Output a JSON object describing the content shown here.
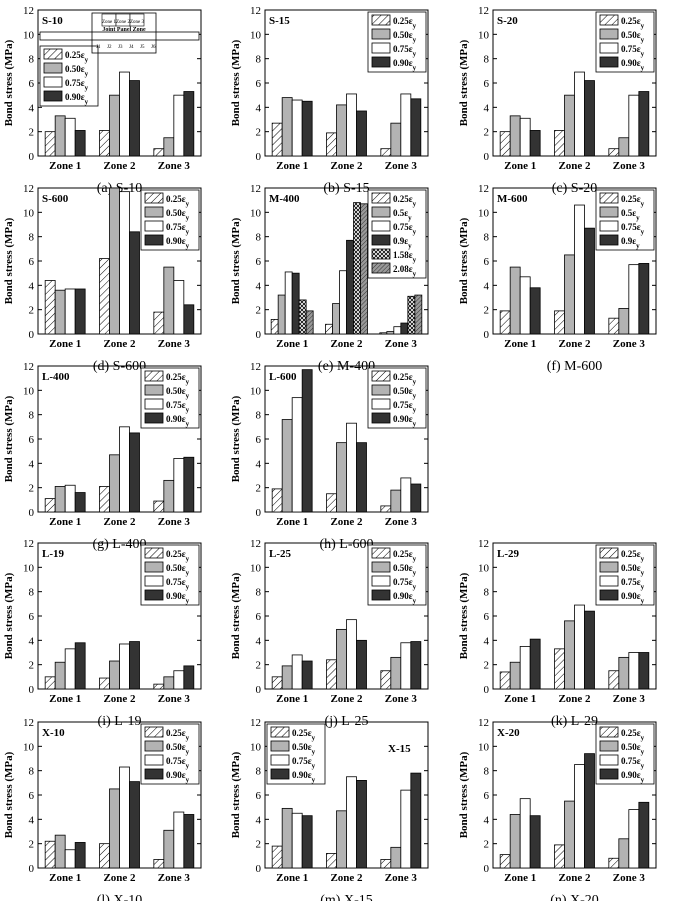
{
  "figure": {
    "bar_colors": [
      "#ffffff",
      "#b3b3b3",
      "#ffffff",
      "#333333",
      "#ffffff",
      "#999999"
    ],
    "bar_patterns": [
      "hatch",
      "solid",
      "solid",
      "solid",
      "cross",
      "dense-hatch"
    ],
    "inset": {
      "title": "Joint Panel Zone",
      "zone_labels": [
        "Zone 1",
        "Zone 2",
        "Zone 3"
      ],
      "gauge_labels": [
        "J1",
        "J2",
        "J3",
        "J4",
        "J5",
        "J6"
      ]
    }
  },
  "chart_data": [
    {
      "type": "bar",
      "title": "S-10",
      "caption": "(a) S-10",
      "ylabel": "Bond stress (MPa)",
      "ylim": [
        0,
        12
      ],
      "yticks": [
        0,
        2,
        4,
        6,
        8,
        10,
        12
      ],
      "categories": [
        "Zone 1",
        "Zone 2",
        "Zone 3"
      ],
      "legend_position": "left-middle",
      "series": [
        {
          "name": "0.25εy",
          "values": [
            2.0,
            2.1,
            0.6
          ]
        },
        {
          "name": "0.50εy",
          "values": [
            3.3,
            5.0,
            1.5
          ]
        },
        {
          "name": "0.75εy",
          "values": [
            3.1,
            6.9,
            5.0
          ]
        },
        {
          "name": "0.90εy",
          "values": [
            2.1,
            6.2,
            5.3
          ]
        }
      ]
    },
    {
      "type": "bar",
      "title": "S-15",
      "caption": "(b) S-15",
      "ylabel": "Bond stress (MPa)",
      "ylim": [
        0,
        12
      ],
      "yticks": [
        0,
        2,
        4,
        6,
        8,
        10,
        12
      ],
      "categories": [
        "Zone 1",
        "Zone 2",
        "Zone 3"
      ],
      "legend_position": "top-right",
      "series": [
        {
          "name": "0.25εy",
          "values": [
            2.7,
            1.9,
            0.6
          ]
        },
        {
          "name": "0.50εy",
          "values": [
            4.8,
            4.2,
            2.7
          ]
        },
        {
          "name": "0.75εy",
          "values": [
            4.6,
            5.1,
            5.1
          ]
        },
        {
          "name": "0.90εy",
          "values": [
            4.5,
            3.7,
            4.7
          ]
        }
      ]
    },
    {
      "type": "bar",
      "title": "S-20",
      "caption": "(c) S-20",
      "ylabel": "Bond stress (MPa)",
      "ylim": [
        0,
        12
      ],
      "yticks": [
        0,
        2,
        4,
        6,
        8,
        10,
        12
      ],
      "categories": [
        "Zone 1",
        "Zone 2",
        "Zone 3"
      ],
      "legend_position": "top-right",
      "series": [
        {
          "name": "0.25εy",
          "values": [
            2.0,
            2.1,
            0.6
          ]
        },
        {
          "name": "0.50εy",
          "values": [
            3.3,
            5.0,
            1.5
          ]
        },
        {
          "name": "0.75εy",
          "values": [
            3.1,
            6.9,
            5.0
          ]
        },
        {
          "name": "0.90εy",
          "values": [
            2.1,
            6.2,
            5.3
          ]
        }
      ]
    },
    {
      "type": "bar",
      "title": "S-600",
      "caption": "(d) S-600",
      "ylabel": "Bond stress (MPa)",
      "ylim": [
        0,
        12
      ],
      "yticks": [
        0,
        2,
        4,
        6,
        8,
        10,
        12
      ],
      "categories": [
        "Zone 1",
        "Zone 2",
        "Zone 3"
      ],
      "legend_position": "top-right",
      "series": [
        {
          "name": "0.25εy",
          "values": [
            4.4,
            6.2,
            1.8
          ]
        },
        {
          "name": "0.50εy",
          "values": [
            3.6,
            12.0,
            5.5
          ]
        },
        {
          "name": "0.75εy",
          "values": [
            3.7,
            11.7,
            4.4
          ]
        },
        {
          "name": "0.90εy",
          "values": [
            3.7,
            8.4,
            2.4
          ]
        }
      ]
    },
    {
      "type": "bar",
      "title": "M-400",
      "caption": "(e) M-400",
      "ylabel": "Bond stress (MPa)",
      "ylim": [
        0,
        12
      ],
      "yticks": [
        0,
        2,
        4,
        6,
        8,
        10,
        12
      ],
      "categories": [
        "Zone 1",
        "Zone 2",
        "Zone 3"
      ],
      "legend_position": "top-right",
      "series": [
        {
          "name": "0.25εy",
          "values": [
            1.2,
            0.8,
            0.1
          ]
        },
        {
          "name": "0.5εy",
          "values": [
            3.2,
            2.5,
            0.2
          ]
        },
        {
          "name": "0.75εy",
          "values": [
            5.1,
            5.2,
            0.6
          ]
        },
        {
          "name": "0.9εy",
          "values": [
            5.0,
            7.7,
            0.9
          ]
        },
        {
          "name": "1.58εy",
          "values": [
            2.8,
            10.8,
            3.1
          ]
        },
        {
          "name": "2.08εy",
          "values": [
            1.9,
            10.7,
            3.2
          ]
        }
      ]
    },
    {
      "type": "bar",
      "title": "M-600",
      "caption": "(f) M-600",
      "ylabel": "Bond stress (MPa)",
      "ylim": [
        0,
        12
      ],
      "yticks": [
        0,
        2,
        4,
        6,
        8,
        10,
        12
      ],
      "categories": [
        "Zone 1",
        "Zone 2",
        "Zone 3"
      ],
      "legend_position": "top-right",
      "series": [
        {
          "name": "0.25εy",
          "values": [
            1.9,
            1.9,
            1.3
          ]
        },
        {
          "name": "0.5εy",
          "values": [
            5.5,
            6.5,
            2.1
          ]
        },
        {
          "name": "0.75εy",
          "values": [
            4.7,
            10.6,
            5.7
          ]
        },
        {
          "name": "0.9εy",
          "values": [
            3.8,
            8.7,
            5.8
          ]
        }
      ]
    },
    {
      "type": "bar",
      "title": "L-400",
      "caption": "(g) L-400",
      "ylabel": "Bond stress (MPa)",
      "ylim": [
        0,
        12
      ],
      "yticks": [
        0,
        2,
        4,
        6,
        8,
        10,
        12
      ],
      "categories": [
        "Zone 1",
        "Zone 2",
        "Zone 3"
      ],
      "legend_position": "top-right",
      "series": [
        {
          "name": "0.25εy",
          "values": [
            1.1,
            2.1,
            0.9
          ]
        },
        {
          "name": "0.50εy",
          "values": [
            2.1,
            4.7,
            2.6
          ]
        },
        {
          "name": "0.75εy",
          "values": [
            2.2,
            7.0,
            4.4
          ]
        },
        {
          "name": "0.90εy",
          "values": [
            1.6,
            6.5,
            4.5
          ]
        }
      ]
    },
    {
      "type": "bar",
      "title": "L-600",
      "caption": "(h) L-600",
      "ylabel": "Bond stress (MPa)",
      "ylim": [
        0,
        12
      ],
      "yticks": [
        0,
        2,
        4,
        6,
        8,
        10,
        12
      ],
      "categories": [
        "Zone 1",
        "Zone 2",
        "Zone 3"
      ],
      "legend_position": "top-right",
      "series": [
        {
          "name": "0.25εy",
          "values": [
            1.9,
            1.5,
            0.5
          ]
        },
        {
          "name": "0.50εy",
          "values": [
            7.6,
            5.7,
            1.8
          ]
        },
        {
          "name": "0.75εy",
          "values": [
            9.4,
            7.3,
            2.8
          ]
        },
        {
          "name": "0.90εy",
          "values": [
            11.7,
            5.7,
            2.3
          ]
        }
      ]
    },
    {
      "type": "bar",
      "title": "L-19",
      "caption": "(i) L-19",
      "ylabel": "Bond stress (MPa)",
      "ylim": [
        0,
        12
      ],
      "yticks": [
        0,
        2,
        4,
        6,
        8,
        10,
        12
      ],
      "categories": [
        "Zone 1",
        "Zone 2",
        "Zone 3"
      ],
      "legend_position": "top-right",
      "series": [
        {
          "name": "0.25εy",
          "values": [
            1.0,
            0.9,
            0.4
          ]
        },
        {
          "name": "0.50εy",
          "values": [
            2.2,
            2.3,
            1.0
          ]
        },
        {
          "name": "0.75εy",
          "values": [
            3.3,
            3.7,
            1.5
          ]
        },
        {
          "name": "0.90εy",
          "values": [
            3.8,
            3.9,
            1.9
          ]
        }
      ]
    },
    {
      "type": "bar",
      "title": "L-25",
      "caption": "(j) L-25",
      "ylabel": "Bond stress (MPa)",
      "ylim": [
        0,
        12
      ],
      "yticks": [
        0,
        2,
        4,
        6,
        8,
        10,
        12
      ],
      "categories": [
        "Zone 1",
        "Zone 2",
        "Zone 3"
      ],
      "legend_position": "top-right",
      "series": [
        {
          "name": "0.25εy",
          "values": [
            1.0,
            2.4,
            1.5
          ]
        },
        {
          "name": "0.50εy",
          "values": [
            1.9,
            4.9,
            2.6
          ]
        },
        {
          "name": "0.75εy",
          "values": [
            2.8,
            5.7,
            3.8
          ]
        },
        {
          "name": "0.90εy",
          "values": [
            2.3,
            4.0,
            3.9
          ]
        }
      ]
    },
    {
      "type": "bar",
      "title": "L-29",
      "caption": "(k) L-29",
      "ylabel": "Bond stress (MPa)",
      "ylim": [
        0,
        12
      ],
      "yticks": [
        0,
        2,
        4,
        6,
        8,
        10,
        12
      ],
      "categories": [
        "Zone 1",
        "Zone 2",
        "Zone 3"
      ],
      "legend_position": "top-right",
      "series": [
        {
          "name": "0.25εy",
          "values": [
            1.4,
            3.3,
            1.5
          ]
        },
        {
          "name": "0.50εy",
          "values": [
            2.2,
            5.6,
            2.6
          ]
        },
        {
          "name": "0.75εy",
          "values": [
            3.5,
            6.9,
            3.0
          ]
        },
        {
          "name": "0.90εy",
          "values": [
            4.1,
            6.4,
            3.0
          ]
        }
      ]
    },
    {
      "type": "bar",
      "title": "X-10",
      "caption": "(l) X-10",
      "ylabel": "Bond stress (MPa)",
      "ylim": [
        0,
        12
      ],
      "yticks": [
        0,
        2,
        4,
        6,
        8,
        10,
        12
      ],
      "categories": [
        "Zone 1",
        "Zone 2",
        "Zone 3"
      ],
      "legend_position": "top-right",
      "series": [
        {
          "name": "0.25εy",
          "values": [
            2.2,
            2.0,
            0.7
          ]
        },
        {
          "name": "0.50εy",
          "values": [
            2.7,
            6.5,
            3.1
          ]
        },
        {
          "name": "0.75εy",
          "values": [
            1.5,
            8.3,
            4.6
          ]
        },
        {
          "name": "0.90εy",
          "values": [
            2.1,
            7.1,
            4.4
          ]
        }
      ]
    },
    {
      "type": "bar",
      "title": "X-15",
      "caption": "(m) X-15",
      "ylabel": "Bond stress (MPa)",
      "ylim": [
        0,
        12
      ],
      "yticks": [
        0,
        2,
        4,
        6,
        8,
        10,
        12
      ],
      "categories": [
        "Zone 1",
        "Zone 2",
        "Zone 3"
      ],
      "legend_position": "top-left",
      "series": [
        {
          "name": "0.25εy",
          "values": [
            1.8,
            1.2,
            0.7
          ]
        },
        {
          "name": "0.50εy",
          "values": [
            4.9,
            4.7,
            1.7
          ]
        },
        {
          "name": "0.75εy",
          "values": [
            4.5,
            7.5,
            6.4
          ]
        },
        {
          "name": "0.90εy",
          "values": [
            4.3,
            7.2,
            7.8
          ]
        }
      ]
    },
    {
      "type": "bar",
      "title": "X-20",
      "caption": "(n) X-20",
      "ylabel": "Bond stress (MPa)",
      "ylim": [
        0,
        12
      ],
      "yticks": [
        0,
        2,
        4,
        6,
        8,
        10,
        12
      ],
      "categories": [
        "Zone 1",
        "Zone 2",
        "Zone 3"
      ],
      "legend_position": "top-right",
      "series": [
        {
          "name": "0.25εy",
          "values": [
            1.1,
            1.9,
            0.8
          ]
        },
        {
          "name": "0.50εy",
          "values": [
            4.4,
            5.5,
            2.4
          ]
        },
        {
          "name": "0.75εy",
          "values": [
            5.7,
            8.5,
            4.8
          ]
        },
        {
          "name": "0.90εy",
          "values": [
            4.3,
            9.4,
            5.4
          ]
        }
      ]
    }
  ]
}
